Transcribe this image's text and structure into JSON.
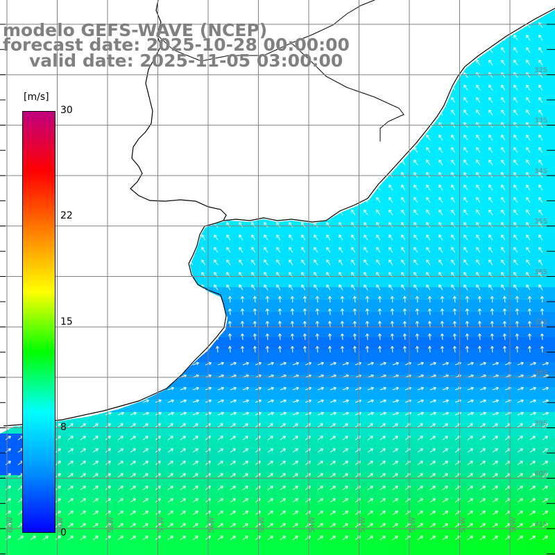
{
  "title": {
    "line1": "modelo GEFS-WAVE (NCEP)",
    "line2": "forecast date: 2025-10-28 00:00:00",
    "line3": "valid date: 2025-11-05 03:00:00"
  },
  "colorbar": {
    "unit": "[m/s]",
    "ticks": [
      "30",
      "22",
      "15",
      "8",
      "0"
    ],
    "min": 0,
    "max": 30,
    "colors": [
      "#0000ff",
      "#0090ff",
      "#00ffff",
      "#00ff00",
      "#ffff00",
      "#ff8000",
      "#ff0000",
      "#c00080"
    ]
  },
  "colors": {
    "land": "#ffffff",
    "grid": "#808080",
    "coast": "#000000",
    "arrows": "#ffffff",
    "title": "#808080"
  },
  "grid": {
    "lat_labels": [
      "32S",
      "33S",
      "34S",
      "35S",
      "36S",
      "37S",
      "38S",
      "39S",
      "40S",
      "41S"
    ],
    "lon_labels": [
      "60W",
      "59W",
      "58W",
      "57W",
      "56W",
      "55W",
      "54W",
      "53W",
      "52W",
      "51W",
      "50W"
    ]
  }
}
